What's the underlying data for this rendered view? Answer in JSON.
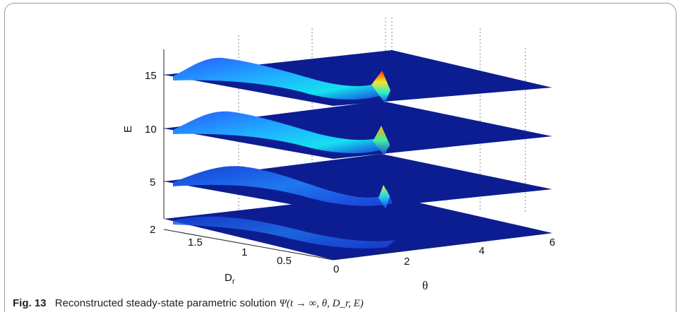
{
  "caption": {
    "label": "Fig. 13",
    "text": "Reconstructed steady-state parametric solution",
    "formula": "Ψ(t → ∞, θ, D_r, E)"
  },
  "chart_data": {
    "type": "surface",
    "title": "",
    "z_axis": {
      "label": "E",
      "ticks": [
        "5",
        "10",
        "15"
      ]
    },
    "y_axis": {
      "label": "D_r",
      "ticks": [
        "2",
        "1.5",
        "1",
        "0.5",
        "0"
      ],
      "range": [
        0,
        2
      ]
    },
    "x_axis": {
      "label": "θ",
      "ticks": [
        "0",
        "2",
        "4",
        "6"
      ],
      "range": [
        0,
        6.28
      ]
    },
    "slices_E": [
      0,
      5,
      10,
      15
    ],
    "colormap": "jet",
    "colors": {
      "low": "#0a1a8c",
      "mid": "#1fb0ff",
      "high": "#ff2a00",
      "peak_mid": "#f6e52a"
    }
  }
}
